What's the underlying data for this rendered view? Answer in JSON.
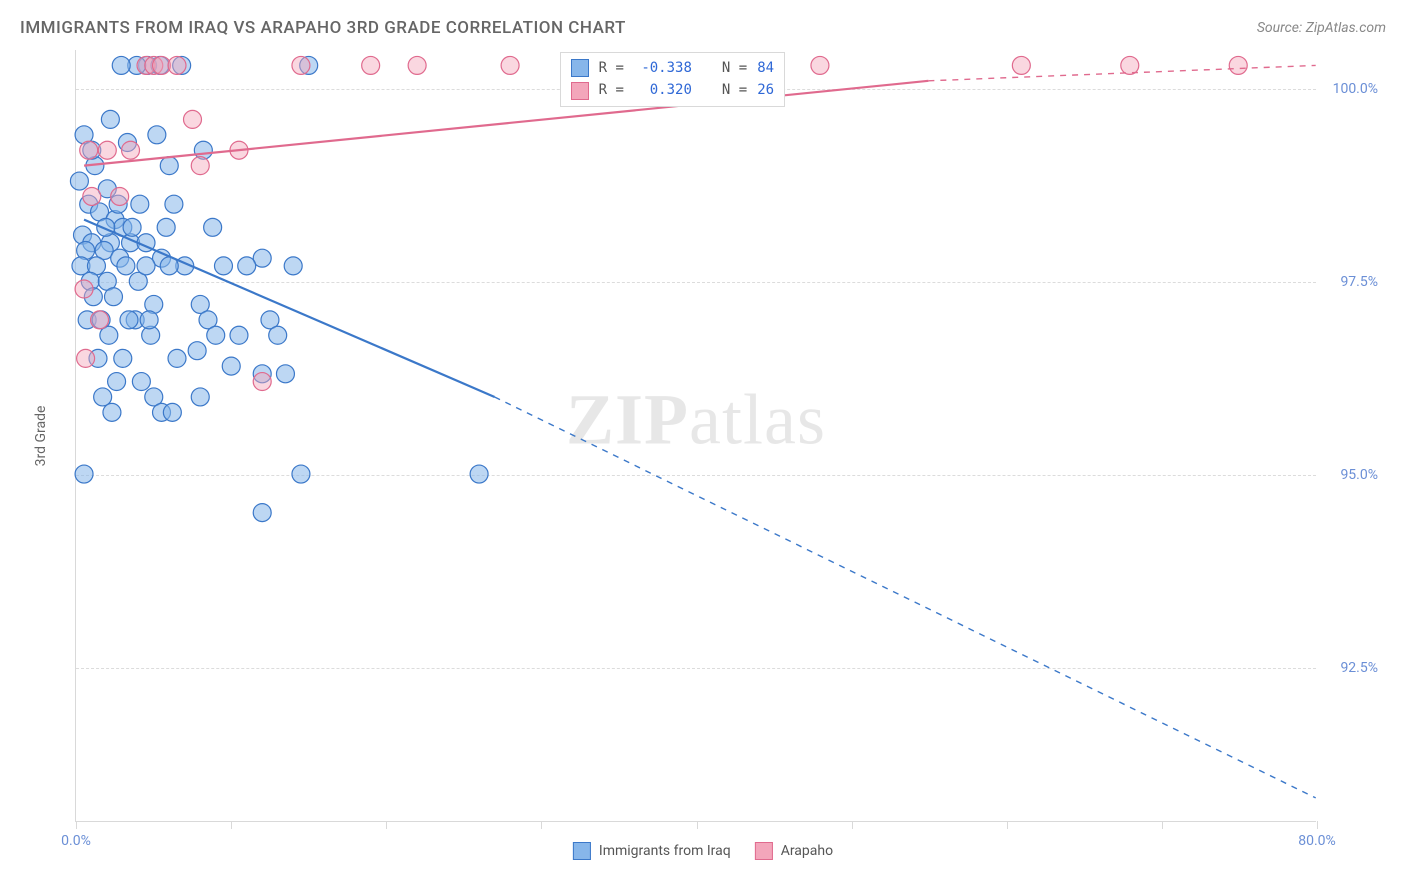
{
  "title": "IMMIGRANTS FROM IRAQ VS ARAPAHO 3RD GRADE CORRELATION CHART",
  "source_label": "Source: ZipAtlas.com",
  "ylabel": "3rd Grade",
  "watermark": "ZIPatlas",
  "chart": {
    "type": "scatter",
    "xlim": [
      0,
      80
    ],
    "ylim": [
      90.5,
      100.5
    ],
    "xtick_positions": [
      0,
      10,
      20,
      30,
      40,
      50,
      60,
      70,
      80
    ],
    "xtick_labels": [
      "0.0%",
      "",
      "",
      "",
      "",
      "",
      "",
      "",
      "80.0%"
    ],
    "ytick_positions": [
      92.5,
      95.0,
      97.5,
      100.0
    ],
    "ytick_labels": [
      "92.5%",
      "95.0%",
      "97.5%",
      "100.0%"
    ],
    "grid_color": "#dcdcdc",
    "background_color": "#ffffff",
    "marker_radius": 9,
    "marker_stroke_width": 1.2,
    "line_width_solid": 2.2,
    "line_width_dashed": 1.4,
    "dash_pattern": "6 6"
  },
  "series": [
    {
      "name": "Immigrants from Iraq",
      "color_fill": "#87b6ea",
      "color_stroke": "#3b78c9",
      "fill_opacity": 0.55,
      "R": "-0.338",
      "N": "84",
      "trend_start": {
        "x": 0.5,
        "y": 98.3
      },
      "trend_solid_end": {
        "x": 27,
        "y": 96.0
      },
      "trend_dashed_end": {
        "x": 80,
        "y": 90.8
      },
      "points": [
        {
          "x": 0.5,
          "y": 99.4
        },
        {
          "x": 1.2,
          "y": 99.0
        },
        {
          "x": 2.0,
          "y": 98.7
        },
        {
          "x": 0.8,
          "y": 98.5
        },
        {
          "x": 1.5,
          "y": 98.4
        },
        {
          "x": 2.5,
          "y": 98.3
        },
        {
          "x": 3.0,
          "y": 98.2
        },
        {
          "x": 0.4,
          "y": 98.1
        },
        {
          "x": 1.0,
          "y": 98.0
        },
        {
          "x": 2.2,
          "y": 98.0
        },
        {
          "x": 3.5,
          "y": 98.0
        },
        {
          "x": 4.5,
          "y": 98.0
        },
        {
          "x": 0.6,
          "y": 97.9
        },
        {
          "x": 1.8,
          "y": 97.9
        },
        {
          "x": 5.5,
          "y": 97.8
        },
        {
          "x": 2.8,
          "y": 97.8
        },
        {
          "x": 0.3,
          "y": 97.7
        },
        {
          "x": 1.3,
          "y": 97.7
        },
        {
          "x": 3.2,
          "y": 97.7
        },
        {
          "x": 7.0,
          "y": 97.7
        },
        {
          "x": 12.0,
          "y": 97.8
        },
        {
          "x": 0.9,
          "y": 97.5
        },
        {
          "x": 2.0,
          "y": 97.5
        },
        {
          "x": 4.0,
          "y": 97.5
        },
        {
          "x": 1.1,
          "y": 97.3
        },
        {
          "x": 2.4,
          "y": 97.3
        },
        {
          "x": 5.0,
          "y": 97.2
        },
        {
          "x": 8.0,
          "y": 97.2
        },
        {
          "x": 0.7,
          "y": 97.0
        },
        {
          "x": 1.6,
          "y": 97.0
        },
        {
          "x": 3.8,
          "y": 97.0
        },
        {
          "x": 11.0,
          "y": 97.7
        },
        {
          "x": 2.1,
          "y": 96.8
        },
        {
          "x": 4.8,
          "y": 96.8
        },
        {
          "x": 8.5,
          "y": 97.0
        },
        {
          "x": 12.5,
          "y": 97.0
        },
        {
          "x": 1.4,
          "y": 96.5
        },
        {
          "x": 3.0,
          "y": 96.5
        },
        {
          "x": 6.5,
          "y": 96.5
        },
        {
          "x": 10.0,
          "y": 96.4
        },
        {
          "x": 2.6,
          "y": 96.2
        },
        {
          "x": 4.2,
          "y": 96.2
        },
        {
          "x": 12.0,
          "y": 96.3
        },
        {
          "x": 13.5,
          "y": 96.3
        },
        {
          "x": 1.7,
          "y": 96.0
        },
        {
          "x": 5.0,
          "y": 96.0
        },
        {
          "x": 8.0,
          "y": 96.0
        },
        {
          "x": 2.3,
          "y": 95.8
        },
        {
          "x": 6.0,
          "y": 97.7
        },
        {
          "x": 9.5,
          "y": 97.7
        },
        {
          "x": 14.0,
          "y": 97.7
        },
        {
          "x": 4.5,
          "y": 97.7
        },
        {
          "x": 1.9,
          "y": 98.2
        },
        {
          "x": 3.6,
          "y": 98.2
        },
        {
          "x": 5.8,
          "y": 98.2
        },
        {
          "x": 8.8,
          "y": 98.2
        },
        {
          "x": 2.7,
          "y": 98.5
        },
        {
          "x": 4.1,
          "y": 98.5
        },
        {
          "x": 6.3,
          "y": 98.5
        },
        {
          "x": 0.2,
          "y": 98.8
        },
        {
          "x": 1.0,
          "y": 99.2
        },
        {
          "x": 3.3,
          "y": 99.3
        },
        {
          "x": 5.2,
          "y": 99.4
        },
        {
          "x": 6.8,
          "y": 100.3
        },
        {
          "x": 4.6,
          "y": 100.3
        },
        {
          "x": 3.9,
          "y": 100.3
        },
        {
          "x": 2.9,
          "y": 100.3
        },
        {
          "x": 5.4,
          "y": 100.3
        },
        {
          "x": 0.5,
          "y": 95.0
        },
        {
          "x": 14.5,
          "y": 95.0
        },
        {
          "x": 26.0,
          "y": 95.0
        },
        {
          "x": 12.0,
          "y": 94.5
        },
        {
          "x": 5.5,
          "y": 95.8
        },
        {
          "x": 6.2,
          "y": 95.8
        },
        {
          "x": 7.8,
          "y": 96.6
        },
        {
          "x": 9.0,
          "y": 96.8
        },
        {
          "x": 10.5,
          "y": 96.8
        },
        {
          "x": 13.0,
          "y": 96.8
        },
        {
          "x": 3.4,
          "y": 97.0
        },
        {
          "x": 4.7,
          "y": 97.0
        },
        {
          "x": 2.2,
          "y": 99.6
        },
        {
          "x": 6.0,
          "y": 99.0
        },
        {
          "x": 8.2,
          "y": 99.2
        },
        {
          "x": 15.0,
          "y": 100.3
        }
      ]
    },
    {
      "name": "Arapaho",
      "color_fill": "#f3a6bb",
      "color_stroke": "#e06a8e",
      "fill_opacity": 0.45,
      "R": "0.320",
      "N": "26",
      "trend_start": {
        "x": 0.5,
        "y": 99.0
      },
      "trend_solid_end": {
        "x": 55,
        "y": 100.1
      },
      "trend_dashed_end": {
        "x": 80,
        "y": 100.3
      },
      "points": [
        {
          "x": 0.8,
          "y": 99.2
        },
        {
          "x": 2.0,
          "y": 99.2
        },
        {
          "x": 4.5,
          "y": 100.3
        },
        {
          "x": 5.0,
          "y": 100.3
        },
        {
          "x": 5.5,
          "y": 100.3
        },
        {
          "x": 6.5,
          "y": 100.3
        },
        {
          "x": 7.5,
          "y": 99.6
        },
        {
          "x": 10.5,
          "y": 99.2
        },
        {
          "x": 14.5,
          "y": 100.3
        },
        {
          "x": 19.0,
          "y": 100.3
        },
        {
          "x": 22.0,
          "y": 100.3
        },
        {
          "x": 28.0,
          "y": 100.3
        },
        {
          "x": 34.0,
          "y": 100.3
        },
        {
          "x": 42.0,
          "y": 100.3
        },
        {
          "x": 48.0,
          "y": 100.3
        },
        {
          "x": 61.0,
          "y": 100.3
        },
        {
          "x": 68.0,
          "y": 100.3
        },
        {
          "x": 75.0,
          "y": 100.3
        },
        {
          "x": 1.0,
          "y": 98.6
        },
        {
          "x": 2.8,
          "y": 98.6
        },
        {
          "x": 0.5,
          "y": 97.4
        },
        {
          "x": 1.5,
          "y": 97.0
        },
        {
          "x": 12.0,
          "y": 96.2
        },
        {
          "x": 0.6,
          "y": 96.5
        },
        {
          "x": 8.0,
          "y": 99.0
        },
        {
          "x": 3.5,
          "y": 99.2
        }
      ]
    }
  ],
  "legend_bottom": [
    {
      "label": "Immigrants from Iraq",
      "swatch": "#87b6ea",
      "border": "#3b78c9"
    },
    {
      "label": "Arapaho",
      "swatch": "#f3a6bb",
      "border": "#e06a8e"
    }
  ]
}
